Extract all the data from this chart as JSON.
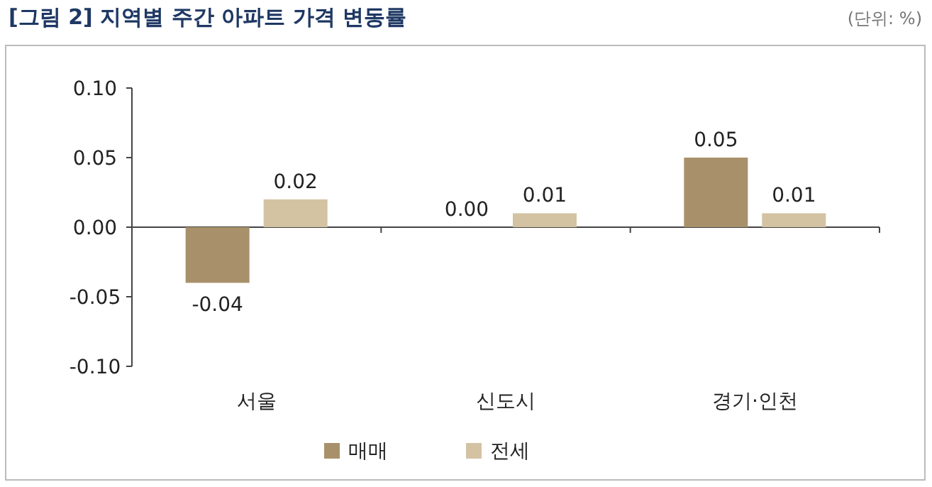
{
  "chart_data": {
    "type": "bar",
    "title": "[그림 2] 지역별 주간 아파트 가격 변동률",
    "annotations": [
      "(단위: %)"
    ],
    "categories": [
      "서울",
      "신도시",
      "경기·인천"
    ],
    "series": [
      {
        "name": "매매",
        "color": "#a8916a",
        "values": [
          -0.04,
          0.0,
          0.05
        ],
        "value_labels": [
          "-0.04",
          "0.00",
          "0.05"
        ]
      },
      {
        "name": "전세",
        "color": "#d3c3a3",
        "values": [
          0.02,
          0.01,
          0.01
        ],
        "value_labels": [
          "0.02",
          "0.01",
          "0.01"
        ]
      }
    ],
    "ylim": [
      -0.1,
      0.1
    ],
    "yticks": [
      {
        "value": -0.1,
        "label": "-0.10"
      },
      {
        "value": -0.05,
        "label": "-0.05"
      },
      {
        "value": 0,
        "label": "0.00"
      },
      {
        "value": 0.05,
        "label": "0.05"
      },
      {
        "value": 0.1,
        "label": "0.10"
      }
    ],
    "legend": "bottom"
  }
}
